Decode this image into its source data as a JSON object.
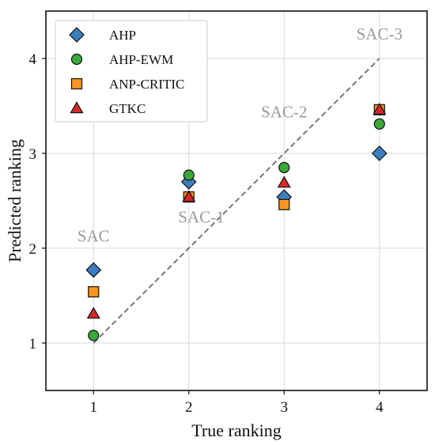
{
  "chart_data": {
    "type": "scatter",
    "title": "",
    "xlabel": "True ranking",
    "ylabel": "Predicted ranking",
    "xlim": [
      0.5,
      4.5
    ],
    "ylim": [
      0.5,
      4.5
    ],
    "xticks": [
      "1",
      "2",
      "3",
      "4"
    ],
    "yticks": [
      "1",
      "2",
      "3",
      "4"
    ],
    "grid": true,
    "legend_position": "top-left",
    "series": [
      {
        "name": "AHP",
        "marker": "diamond",
        "color": "#3b7fbf",
        "points": [
          [
            1,
            1.77
          ],
          [
            2,
            2.7
          ],
          [
            3,
            2.54
          ],
          [
            4,
            3.0
          ]
        ]
      },
      {
        "name": "AHP-EWM",
        "marker": "circle",
        "color": "#3aa83a",
        "points": [
          [
            1,
            1.08
          ],
          [
            2,
            2.77
          ],
          [
            3,
            2.85
          ],
          [
            4,
            3.31
          ]
        ]
      },
      {
        "name": "ANP-CRITIC",
        "marker": "square",
        "color": "#f79520",
        "points": [
          [
            1,
            1.54
          ],
          [
            2,
            2.54
          ],
          [
            3,
            2.46
          ],
          [
            4,
            3.46
          ]
        ]
      },
      {
        "name": "GTKC",
        "marker": "triangle",
        "color": "#d62728",
        "points": [
          [
            1,
            1.31
          ],
          [
            2,
            2.54
          ],
          [
            3,
            2.69
          ],
          [
            4,
            3.46
          ]
        ]
      }
    ],
    "reference_line": {
      "style": "dashed",
      "color": "#777777",
      "points": [
        [
          1,
          1
        ],
        [
          4,
          4
        ]
      ]
    },
    "annotations": [
      {
        "text": "SAC",
        "x": 1.0,
        "y": 2.07
      },
      {
        "text": "SAC-1",
        "x": 2.13,
        "y": 2.27
      },
      {
        "text": "SAC-2",
        "x": 3.0,
        "y": 3.38
      },
      {
        "text": "SAC-3",
        "x": 4.0,
        "y": 4.2
      }
    ]
  }
}
